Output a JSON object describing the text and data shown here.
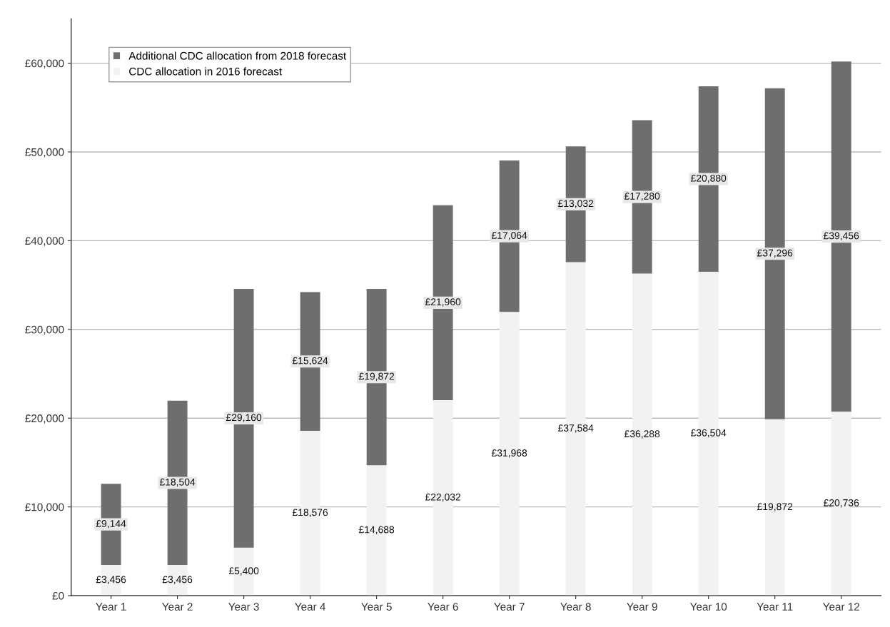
{
  "chart_data": {
    "type": "bar",
    "stacked": true,
    "categories": [
      "Year 1",
      "Year 2",
      "Year 3",
      "Year 4",
      "Year 5",
      "Year 6",
      "Year 7",
      "Year 8",
      "Year 9",
      "Year 10",
      "Year 11",
      "Year 12"
    ],
    "series": [
      {
        "name": "CDC allocation in 2016 forecast",
        "color": "#f2f2f2",
        "values": [
          3456,
          3456,
          5400,
          18576,
          14688,
          22032,
          31968,
          37584,
          36288,
          36504,
          19872,
          20736
        ],
        "value_labels": [
          "£3,456",
          "£3,456",
          "£5,400",
          "£18,576",
          "£14,688",
          "£22,032",
          "£31,968",
          "£37,584",
          "£36,288",
          "£36,504",
          "£19,872",
          "£20,736"
        ]
      },
      {
        "name": "Additional CDC allocation from 2018 forecast",
        "color": "#6e6e6e",
        "values": [
          9144,
          18504,
          29160,
          15624,
          19872,
          21960,
          17064,
          13032,
          17280,
          20880,
          37296,
          39456
        ],
        "value_labels": [
          "£9,144",
          "£18,504",
          "£29,160",
          "£15,624",
          "£19,872",
          "£21,960",
          "£17,064",
          "£13,032",
          "£17,280",
          "£20,880",
          "£37,296",
          "£39,456"
        ]
      }
    ],
    "ylim": [
      0,
      65000
    ],
    "yticks": [
      {
        "value": 0,
        "label": "£0"
      },
      {
        "value": 10000,
        "label": "£10,000"
      },
      {
        "value": 20000,
        "label": "£20,000"
      },
      {
        "value": 30000,
        "label": "£30,000"
      },
      {
        "value": 40000,
        "label": "£40,000"
      },
      {
        "value": 50000,
        "label": "£50,000"
      },
      {
        "value": 60000,
        "label": "£60,000"
      }
    ],
    "grid": "y",
    "legend": "top left"
  }
}
